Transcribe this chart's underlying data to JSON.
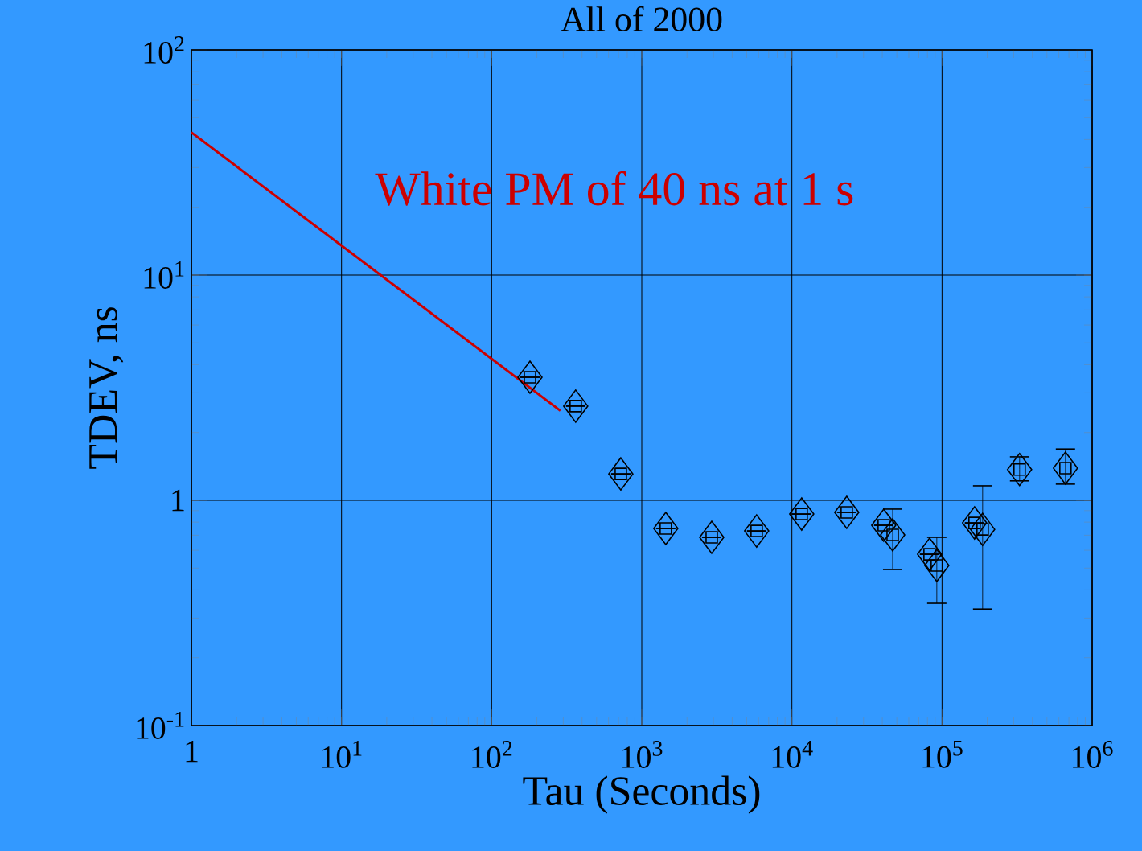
{
  "chart_data": {
    "type": "scatter",
    "title": "All of 2000",
    "xlabel": "Tau (Seconds)",
    "ylabel": "TDEV, ns",
    "log": "xy",
    "grid": true,
    "marker": "diamond",
    "xlim": [
      1,
      1000000
    ],
    "ylim": [
      0.1,
      100
    ],
    "xticks": [
      1,
      {
        "value": 10,
        "label": "10$^{1}$"
      },
      {
        "value": 100,
        "label": "10$^{2}$"
      },
      {
        "value": 1000,
        "label": "10$^{3}$"
      },
      {
        "value": 10000,
        "label": "10$^{4}$"
      },
      {
        "value": 100000,
        "label": "10$^{5}$"
      },
      {
        "value": 1000000,
        "label": "10$^{6}$"
      }
    ],
    "yticks": [
      {
        "value": 0.1,
        "label": "10$^{-1}$"
      },
      1,
      {
        "value": 10,
        "label": "10$^{1}$"
      },
      {
        "value": 100,
        "label": "10$^{2}$"
      }
    ],
    "series": [
      {
        "color": "#000000",
        "x": [
          180,
          363,
          725,
          1445,
          2923,
          5825,
          11620,
          23190,
          40900,
          46900,
          82600,
          92300,
          164700,
          186400,
          328600,
          664000
        ],
        "values": [
          3.52,
          2.62,
          1.31,
          0.75,
          0.685,
          0.731,
          0.869,
          0.884,
          0.775,
          0.702,
          0.576,
          0.514,
          0.794,
          0.743,
          1.37,
          1.39
        ],
        "errors": [
          null,
          null,
          null,
          null,
          null,
          null,
          null,
          null,
          null,
          [
            0.493,
            0.914
          ],
          null,
          [
            0.349,
            0.685
          ],
          null,
          [
            0.329,
            1.16
          ],
          [
            1.22,
            1.56
          ],
          [
            1.18,
            1.69
          ]
        ]
      },
      {
        "type": "line",
        "color": "#cc0000",
        "x": [
          1,
          287
        ],
        "values": [
          43,
          2.5
        ],
        "marker": "none"
      }
    ],
    "annotations": [
      "White PM of 40 ns at 1 s"
    ]
  }
}
